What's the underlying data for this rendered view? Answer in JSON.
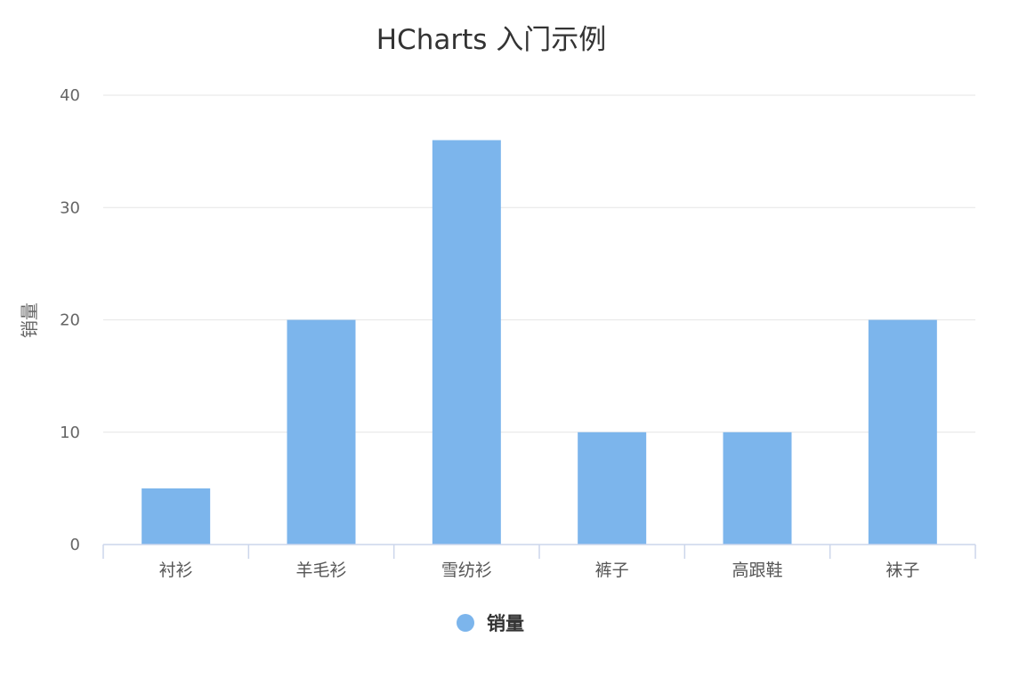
{
  "colors": {
    "bar": "#7cb5ec",
    "grid": "#e6e6e6",
    "axis": "#ccd6eb"
  },
  "chart_data": {
    "type": "bar",
    "title": "HCharts 入门示例",
    "xlabel": "",
    "ylabel": "销量",
    "categories": [
      "衬衫",
      "羊毛衫",
      "雪纺衫",
      "裤子",
      "高跟鞋",
      "袜子"
    ],
    "series": [
      {
        "name": "销量",
        "values": [
          5,
          20,
          36,
          10,
          10,
          20
        ]
      }
    ],
    "ylim": [
      0,
      40
    ],
    "yticks": [
      "0",
      "10",
      "20",
      "30",
      "40"
    ],
    "grid": true,
    "legend": "bottom-center"
  }
}
